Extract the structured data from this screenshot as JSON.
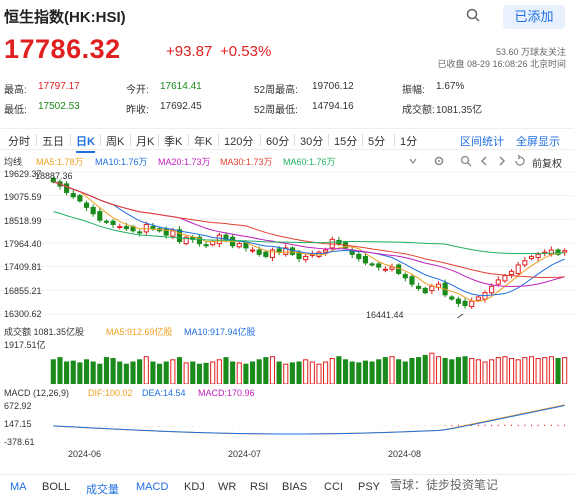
{
  "header": {
    "title": "恒生指数(HK:HSI)",
    "add_label": "已添加"
  },
  "quote": {
    "price": "17786.32",
    "change": "+93.87",
    "percent": "+0.53%",
    "volume_note": "53.60 万球友关注",
    "status": "已收盘 08-29 16:08:26 北京时间"
  },
  "stats": [
    {
      "label": "最高:",
      "value": "17797.17",
      "color": "#e02020"
    },
    {
      "label": "今开:",
      "value": "17614.41",
      "color": "#1a8a1a"
    },
    {
      "label": "52周最高:",
      "value": "19706.12",
      "color": "#333333"
    },
    {
      "label": "振幅:",
      "value": "1.67%",
      "color": "#333333"
    },
    {
      "label": "最低:",
      "value": "17502.53",
      "color": "#1a8a1a"
    },
    {
      "label": "昨收:",
      "value": "17692.45",
      "color": "#333333"
    },
    {
      "label": "52周最低:",
      "value": "14794.16",
      "color": "#333333"
    },
    {
      "label": "成交额:",
      "value": "1081.35亿",
      "color": "#333333"
    }
  ],
  "periods": [
    "分时",
    "五日",
    "日K",
    "周K",
    "月K",
    "季K",
    "年K",
    "120分",
    "60分",
    "30分",
    "15分",
    "5分",
    "1分"
  ],
  "selected_period": "日K",
  "tools": {
    "stats": "区间统计",
    "fullscreen": "全屏显示"
  },
  "ma_legend": {
    "label": "均线",
    "items": [
      {
        "text": "MA5:1.78万",
        "color": "#f0a020"
      },
      {
        "text": "MA10:1.76万",
        "color": "#1f6fe0"
      },
      {
        "text": "MA20:1.73万",
        "color": "#c020c0"
      },
      {
        "text": "MA30:1.73万",
        "color": "#e04030"
      },
      {
        "text": "MA60:1.76万",
        "color": "#20b060"
      }
    ],
    "adjust": "前复权"
  },
  "price_axis": [
    "19629.37",
    "19075.59",
    "18518.99",
    "17964.40",
    "17409.81",
    "16855.21",
    "16300.62"
  ],
  "price_axis_high_note": "18887.36",
  "low_annotation": "16441.44",
  "vol_legend": {
    "label": "成交额 1081.35亿股",
    "items": [
      {
        "text": "MA5:912.69亿股",
        "color": "#f0a020"
      },
      {
        "text": "MA10:917.94亿股",
        "color": "#1f6fe0"
      }
    ]
  },
  "vol_axis": "1917.51亿",
  "macd_legend": {
    "label": "MACD (12,26,9)",
    "items": [
      {
        "text": "DIF:100.02",
        "color": "#f0a020"
      },
      {
        "text": "DEA:14.54",
        "color": "#1f6fe0"
      },
      {
        "text": "MACD:170.96",
        "color": "#c020c0"
      }
    ]
  },
  "macd_axis": [
    "672.92",
    "147.15",
    "-378.61"
  ],
  "date_axis": [
    "2024-06",
    "2024-07",
    "2024-08"
  ],
  "indicators": [
    "MA",
    "BOLL",
    "成交量",
    "MACD",
    "KDJ",
    "WR",
    "RSI",
    "BIAS",
    "CCI",
    "PSY"
  ],
  "selected_indicators": [
    "MA",
    "成交量",
    "MACD"
  ],
  "watermark": "雪球：徒步投资笔记",
  "chart_data": {
    "type": "candlestick",
    "y_range": [
      16300.62,
      19629.37
    ],
    "closes": [
      19400,
      19300,
      19150,
      19050,
      18950,
      18800,
      18650,
      18500,
      18450,
      18400,
      18350,
      18300,
      18250,
      18200,
      18400,
      18300,
      18250,
      18150,
      18250,
      18000,
      18100,
      18050,
      17950,
      17900,
      18000,
      18150,
      18050,
      17900,
      17950,
      17850,
      17800,
      17700,
      17650,
      17800,
      17750,
      17850,
      17700,
      17600,
      17650,
      17700,
      17750,
      17800,
      18050,
      17950,
      17850,
      17700,
      17600,
      17500,
      17450,
      17400,
      17350,
      17400,
      17250,
      17150,
      17000,
      16900,
      16800,
      16950,
      17000,
      16750,
      16650,
      16550,
      16500,
      16600,
      16700,
      16800,
      16950,
      17100,
      17200,
      17300,
      17450,
      17550,
      17650,
      17700,
      17750,
      17800,
      17700,
      17786
    ],
    "volume_fraction": [
      0.55,
      0.6,
      0.5,
      0.52,
      0.48,
      0.55,
      0.5,
      0.45,
      0.6,
      0.58,
      0.5,
      0.45,
      0.5,
      0.55,
      0.62,
      0.5,
      0.45,
      0.5,
      0.55,
      0.6,
      0.48,
      0.5,
      0.45,
      0.47,
      0.5,
      0.55,
      0.6,
      0.5,
      0.48,
      0.45,
      0.5,
      0.55,
      0.6,
      0.62,
      0.5,
      0.45,
      0.48,
      0.5,
      0.55,
      0.5,
      0.45,
      0.5,
      0.58,
      0.62,
      0.55,
      0.5,
      0.48,
      0.52,
      0.5,
      0.55,
      0.6,
      0.62,
      0.55,
      0.5,
      0.58,
      0.6,
      0.65,
      0.7,
      0.62,
      0.58,
      0.55,
      0.6,
      0.62,
      0.58,
      0.55,
      0.5,
      0.55,
      0.6,
      0.62,
      0.58,
      0.55,
      0.6,
      0.62,
      0.58,
      0.6,
      0.62,
      0.58,
      0.6
    ]
  }
}
